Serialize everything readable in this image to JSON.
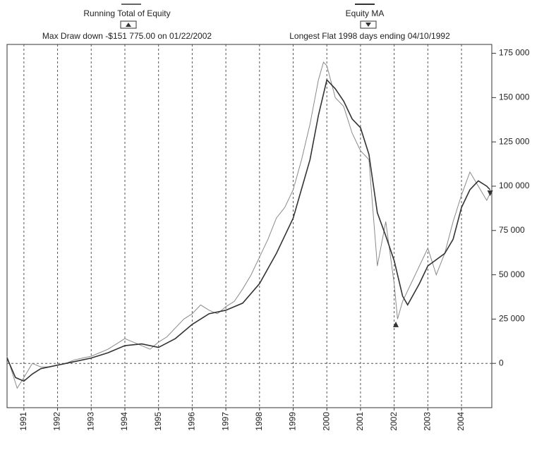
{
  "chart_data": {
    "type": "line",
    "annotations": [
      "Running Total of Equity",
      "Max Draw down -$151 775.00 on 01/22/2002",
      "Equity MA",
      "Longest Flat 1998 days ending 04/10/1992"
    ],
    "series": [
      {
        "name": "Running Total of Equity",
        "color": "#8a8a8a",
        "x": [
          1990.5,
          1990.8,
          1991.0,
          1991.25,
          1991.5,
          1991.75,
          1992.0,
          1992.25,
          1992.5,
          1992.75,
          1993.0,
          1993.25,
          1993.5,
          1993.75,
          1994.0,
          1994.25,
          1994.5,
          1994.75,
          1995.0,
          1995.25,
          1995.5,
          1995.75,
          1996.0,
          1996.25,
          1996.5,
          1996.75,
          1997.0,
          1997.25,
          1997.5,
          1997.75,
          1998.0,
          1998.25,
          1998.5,
          1998.75,
          1999.0,
          1999.25,
          1999.5,
          1999.75,
          1999.9,
          2000.0,
          2000.25,
          2000.5,
          2000.75,
          2001.0,
          2001.25,
          2001.5,
          2001.75,
          2002.0,
          2002.1,
          2002.25,
          2002.5,
          2002.75,
          2003.0,
          2003.25,
          2003.5,
          2003.75,
          2004.0,
          2004.25,
          2004.5,
          2004.75,
          2004.85
        ],
        "values": [
          4000,
          -14000,
          -8000,
          0,
          -2000,
          -2000,
          -1000,
          0,
          2000,
          3000,
          4000,
          6000,
          8000,
          11000,
          14000,
          12000,
          10000,
          8000,
          12000,
          15000,
          20000,
          25000,
          28000,
          33000,
          30000,
          28000,
          32000,
          35000,
          42000,
          50000,
          60000,
          70000,
          82000,
          88000,
          98000,
          115000,
          135000,
          160000,
          170000,
          168000,
          150000,
          145000,
          130000,
          120000,
          115000,
          55000,
          80000,
          45000,
          25000,
          35000,
          45000,
          55000,
          65000,
          50000,
          62000,
          80000,
          95000,
          108000,
          100000,
          92000,
          96000
        ]
      },
      {
        "name": "Equity MA",
        "color": "#333333",
        "x": [
          1990.5,
          1990.75,
          1991.0,
          1991.25,
          1991.5,
          1991.75,
          1992.0,
          1992.5,
          1993.0,
          1993.5,
          1994.0,
          1994.5,
          1995.0,
          1995.5,
          1996.0,
          1996.5,
          1997.0,
          1997.5,
          1998.0,
          1998.5,
          1999.0,
          1999.5,
          1999.75,
          2000.0,
          2000.25,
          2000.5,
          2000.75,
          2001.0,
          2001.25,
          2001.5,
          2001.75,
          2002.0,
          2002.25,
          2002.4,
          2002.75,
          2003.0,
          2003.5,
          2003.75,
          2004.0,
          2004.25,
          2004.5,
          2004.75,
          2004.85
        ],
        "values": [
          3000,
          -8000,
          -10000,
          -6000,
          -3000,
          -2000,
          -1000,
          1000,
          3000,
          6000,
          10000,
          11000,
          9000,
          14000,
          22000,
          28000,
          30000,
          34000,
          45000,
          62000,
          82000,
          115000,
          140000,
          160000,
          155000,
          148000,
          138000,
          133000,
          118000,
          85000,
          72000,
          58000,
          38000,
          33000,
          45000,
          55000,
          62000,
          70000,
          88000,
          98000,
          103000,
          100000,
          98000
        ]
      }
    ],
    "markers": [
      {
        "x": 2002.05,
        "y": 22000,
        "shape": "up"
      },
      {
        "x": 2004.85,
        "y": 96000,
        "shape": "down"
      }
    ],
    "xlim": [
      1990.5,
      2004.9
    ],
    "xticks": [
      1991,
      1992,
      1993,
      1994,
      1995,
      1996,
      1997,
      1998,
      1999,
      2000,
      2001,
      2002,
      2003,
      2004
    ],
    "ylim": [
      -25000,
      180000
    ],
    "yticks": [
      0,
      {
        "value": 25000,
        "label": "25 000"
      },
      {
        "value": 50000,
        "label": "50 000"
      },
      {
        "value": 75000,
        "label": "75 000"
      },
      {
        "value": 100000,
        "label": "100 000"
      },
      {
        "value": 125000,
        "label": "125 000"
      },
      {
        "value": 150000,
        "label": "150 000"
      },
      {
        "value": 175000,
        "label": "175 000"
      }
    ],
    "grid": "x",
    "zero_line": true
  }
}
